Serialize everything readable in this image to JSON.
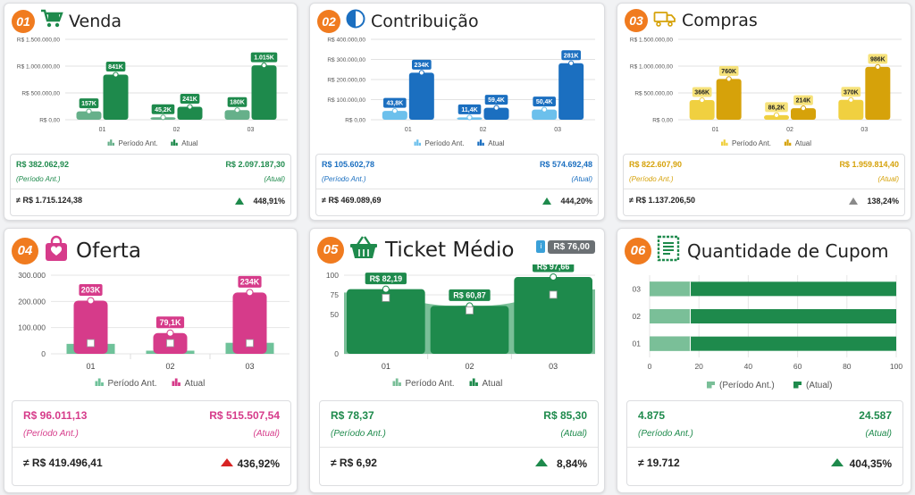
{
  "colors": {
    "badge": "#f07b1f",
    "venda_prev": "#66b08a",
    "venda_cur": "#1e8a4c",
    "contrib_prev": "#6cc0ec",
    "contrib_cur": "#1b6fc0",
    "compras_prev": "#f0d040",
    "compras_cur": "#d6a20a",
    "oferta_prev": "#6fc29a",
    "oferta_cur": "#d63b8a",
    "ticket_prev": "#7abf98",
    "ticket_cur": "#1e8a4c",
    "qtd_prev": "#7abf98",
    "qtd_cur": "#1e8a4c",
    "up": "#1e8a4c",
    "neutral": "#8a8a8a",
    "red": "#d82323"
  },
  "cards": [
    {
      "num": "01",
      "title": "Venda",
      "icon": "cart-icon",
      "chart_data": {
        "type": "bar",
        "categories": [
          "01",
          "02",
          "03"
        ],
        "ylim": [
          0,
          1500000
        ],
        "yticks": [
          "R$ 0,00",
          "R$ 500.000,00",
          "R$ 1.000.000,00",
          "R$ 1.500.000,00"
        ],
        "series": [
          {
            "name": "Período Ant.",
            "values": [
              157000,
              45200,
              180000
            ],
            "labels": [
              "157K",
              "45,2K",
              "180K"
            ]
          },
          {
            "name": "Atual",
            "values": [
              841000,
              241000,
              1015000
            ],
            "labels": [
              "841K",
              "241K",
              "1.015K"
            ]
          }
        ]
      },
      "summary": {
        "prev_value": "R$ 382.062,92",
        "cur_value": "R$ 2.097.187,30",
        "prev_label": "(Período Ant.)",
        "cur_label": "(Atual)",
        "diff": "≠ R$ 1.715.124,38",
        "pct": "448,91%",
        "trend": "up"
      }
    },
    {
      "num": "02",
      "title": "Contribuição",
      "icon": "half-circle-icon",
      "chart_data": {
        "type": "bar",
        "categories": [
          "01",
          "02",
          "03"
        ],
        "ylim": [
          0,
          400000
        ],
        "yticks": [
          "R$ 0,00",
          "R$ 100.000,00",
          "R$ 200.000,00",
          "R$ 300.000,00",
          "R$ 400.000,00"
        ],
        "series": [
          {
            "name": "Período Ant.",
            "values": [
              43800,
              11400,
              50400
            ],
            "labels": [
              "43,8K",
              "11,4K",
              "50,4K"
            ]
          },
          {
            "name": "Atual",
            "values": [
              234000,
              59400,
              281000
            ],
            "labels": [
              "234K",
              "59,4K",
              "281K"
            ]
          }
        ]
      },
      "summary": {
        "prev_value": "R$ 105.602,78",
        "cur_value": "R$ 574.692,48",
        "prev_label": "(Período Ant.)",
        "cur_label": "(Atual)",
        "diff": "≠ R$ 469.089,69",
        "pct": "444,20%",
        "trend": "up"
      }
    },
    {
      "num": "03",
      "title": "Compras",
      "icon": "truck-icon",
      "chart_data": {
        "type": "bar",
        "categories": [
          "01",
          "02",
          "03"
        ],
        "ylim": [
          0,
          1500000
        ],
        "yticks": [
          "R$ 0,00",
          "R$ 500.000,00",
          "R$ 1.000.000,00",
          "R$ 1.500.000,00"
        ],
        "series": [
          {
            "name": "Período Ant.",
            "values": [
              366000,
              86200,
              370000
            ],
            "labels": [
              "366K",
              "86,2K",
              "370K"
            ]
          },
          {
            "name": "Atual",
            "values": [
              760000,
              214000,
              986000
            ],
            "labels": [
              "760K",
              "214K",
              "986K"
            ]
          }
        ]
      },
      "summary": {
        "prev_value": "R$ 822.607,90",
        "cur_value": "R$ 1.959.814,40",
        "prev_label": "(Período Ant.)",
        "cur_label": "(Atual)",
        "diff": "≠ R$ 1.137.206,50",
        "pct": "138,24%",
        "trend": "neutral"
      }
    },
    {
      "num": "04",
      "title": "Oferta",
      "icon": "shopping-bag-icon",
      "chart_data": {
        "type": "bar",
        "categories": [
          "01",
          "02",
          "03"
        ],
        "ylim": [
          0,
          300000
        ],
        "yticks": [
          "0",
          "100.000",
          "200.000",
          "300.000"
        ],
        "series": [
          {
            "name": "Período Ant.",
            "values": [
              38000,
              12000,
              42000
            ],
            "labels": [
              "",
              "",
              ""
            ]
          },
          {
            "name": "Atual",
            "values": [
              203000,
              79100,
              234000
            ],
            "labels": [
              "203K",
              "79,1K",
              "234K"
            ]
          }
        ]
      },
      "summary": {
        "prev_value": "R$ 96.011,13",
        "cur_value": "R$ 515.507,54",
        "prev_label": "(Período Ant.)",
        "cur_label": "(Atual)",
        "diff": "≠ R$ 419.496,41",
        "pct": "436,92%",
        "trend": "red"
      }
    },
    {
      "num": "05",
      "title": "Ticket Médio",
      "icon": "basket-icon",
      "ticket_badge": "R$ 76,00",
      "chart_data": {
        "type": "area",
        "categories": [
          "01",
          "02",
          "03"
        ],
        "ylim": [
          0,
          100
        ],
        "yticks": [
          "0",
          "50",
          "75",
          "100"
        ],
        "ytick_values": [
          0,
          50,
          75,
          100
        ],
        "series": [
          {
            "name": "Período Ant.",
            "values": [
              78,
              62,
              82
            ]
          },
          {
            "name": "Atual",
            "values": [
              82.19,
              60.87,
              97.66
            ],
            "labels": [
              "R$ 82,19",
              "R$ 60,87",
              "R$ 97,66"
            ]
          }
        ]
      },
      "summary": {
        "prev_value": "R$ 78,37",
        "cur_value": "R$ 85,30",
        "prev_label": "(Período Ant.)",
        "cur_label": "(Atual)",
        "diff": "≠ R$ 6,92",
        "pct": "8,84%",
        "trend": "up"
      }
    },
    {
      "num": "06",
      "title": "Quantidade de Cupom",
      "icon": "receipt-icon",
      "chart_data": {
        "type": "bar",
        "orientation": "horizontal",
        "categories": [
          "01",
          "02",
          "03"
        ],
        "xlim": [
          0,
          100
        ],
        "xticks": [
          "0",
          "20",
          "40",
          "60",
          "80",
          "100"
        ],
        "series": [
          {
            "name": "(Período Ant.)",
            "values": [
              16.5,
              16.5,
              16.5
            ]
          },
          {
            "name": "(Atual)",
            "values": [
              100,
              100,
              100
            ]
          }
        ]
      },
      "summary": {
        "prev_value": "4.875",
        "cur_value": "24.587",
        "prev_label": "(Período Ant.)",
        "cur_label": "(Atual)",
        "diff": "≠ 19.712",
        "pct": "404,35%",
        "trend": "up"
      }
    }
  ]
}
